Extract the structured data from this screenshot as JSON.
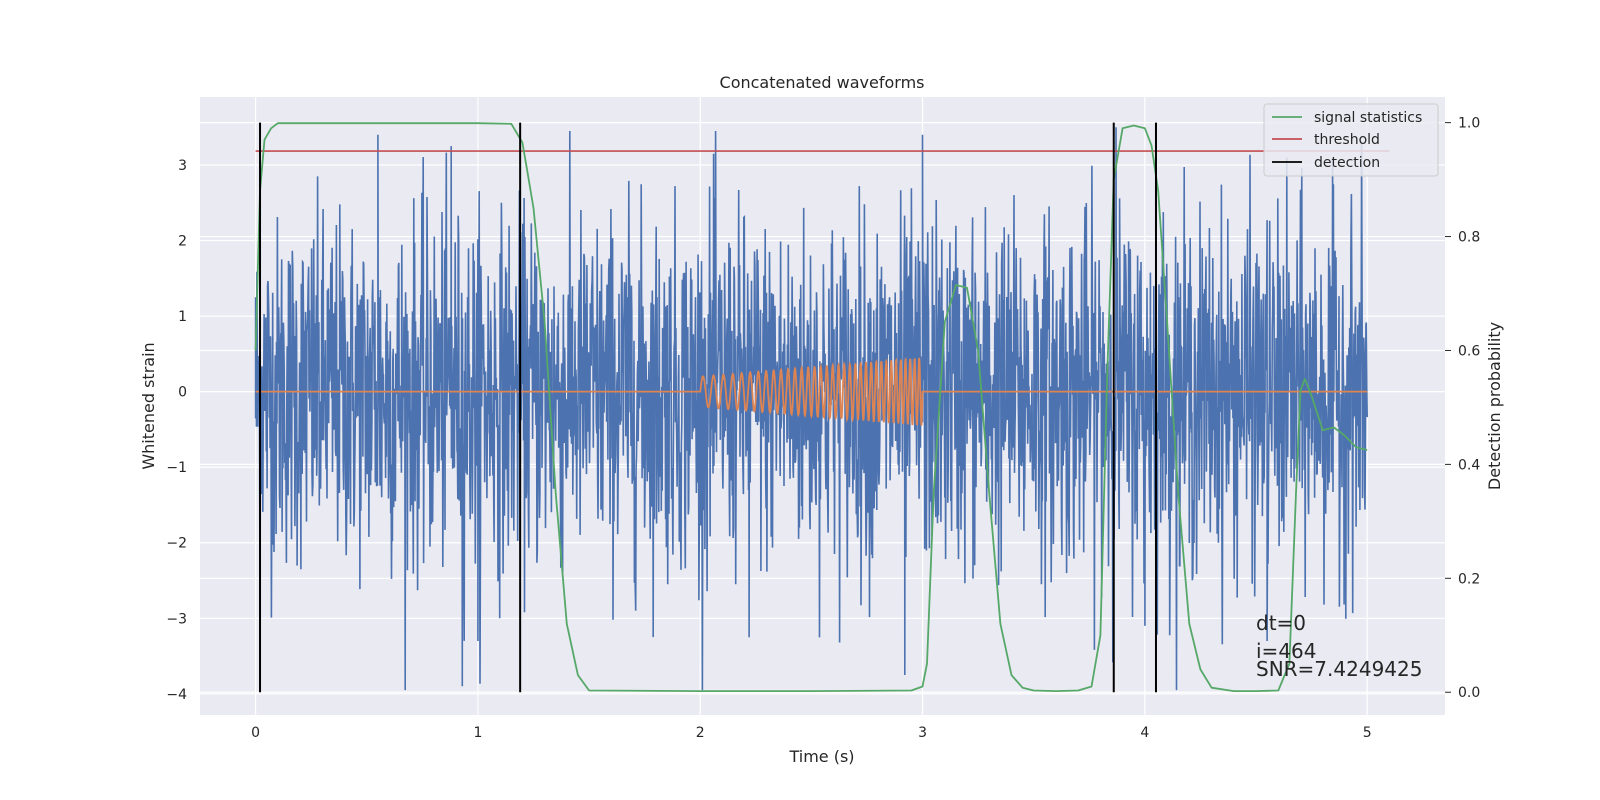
{
  "chart_data": {
    "type": "line",
    "title": "Concatenated waveforms",
    "xlabel": "Time (s)",
    "ylabel_left": "Whitened strain",
    "ylabel_right": "Detection probability",
    "xlim": [
      -0.25,
      5.35
    ],
    "ylim_left": [
      -4.28,
      3.9
    ],
    "ylim_right": [
      -0.04,
      1.045
    ],
    "x_ticks": [
      0,
      1,
      2,
      3,
      4,
      5
    ],
    "x_tick_labels": [
      "0",
      "1",
      "2",
      "3",
      "4",
      "5"
    ],
    "y_left_ticks": [
      -4,
      -3,
      -2,
      -1,
      0,
      1,
      2,
      3
    ],
    "y_left_tick_labels": [
      "−4",
      "−3",
      "−2",
      "−1",
      "0",
      "1",
      "2",
      "3"
    ],
    "y_right_ticks": [
      0.0,
      0.2,
      0.4,
      0.6,
      0.8,
      1.0
    ],
    "y_right_tick_labels": [
      "0.0",
      "0.2",
      "0.4",
      "0.6",
      "0.8",
      "1.0"
    ],
    "grid": true,
    "legend_position": "top-right",
    "legend": [
      {
        "label": "signal statistics",
        "color": "#55a868"
      },
      {
        "label": "threshold",
        "color": "#c44e52"
      },
      {
        "label": "detection",
        "color": "#000000"
      }
    ],
    "series": [
      {
        "kind": "noise_strain",
        "axis": "left",
        "color": "#4c72b0",
        "x_range": [
          0,
          5
        ],
        "amplitude_envelope": 1.2,
        "noted_peaks": [
          [
            0.0,
            1.25
          ],
          [
            0.55,
            3.4
          ],
          [
            0.88,
            3.25
          ],
          [
            0.93,
            -3.9
          ],
          [
            1.0,
            -3.3
          ],
          [
            2.06,
            3.15
          ],
          [
            2.22,
            -3.25
          ],
          [
            2.92,
            -3.75
          ],
          [
            3.0,
            3.4
          ],
          [
            3.87,
            3.5
          ],
          [
            4.0,
            -3.1
          ],
          [
            4.55,
            -3.3
          ]
        ]
      },
      {
        "name": "signal statistics",
        "axis": "right",
        "color": "#55a868",
        "x": [
          0.0,
          0.02,
          0.04,
          0.07,
          0.1,
          0.2,
          0.5,
          1.0,
          1.15,
          1.2,
          1.22,
          1.25,
          1.3,
          1.35,
          1.4,
          1.45,
          1.5,
          2.0,
          2.5,
          2.95,
          3.0,
          3.02,
          3.05,
          3.1,
          3.15,
          3.2,
          3.25,
          3.3,
          3.35,
          3.4,
          3.45,
          3.5,
          3.6,
          3.7,
          3.76,
          3.8,
          3.83,
          3.86,
          3.9,
          3.95,
          4.0,
          4.03,
          4.06,
          4.1,
          4.15,
          4.2,
          4.25,
          4.3,
          4.4,
          4.5,
          4.6,
          4.65,
          4.68,
          4.7,
          4.72,
          4.75,
          4.8,
          4.85,
          4.9,
          4.95,
          5.0
        ],
        "values": [
          0.6,
          0.88,
          0.97,
          0.99,
          0.999,
          0.999,
          0.999,
          0.999,
          0.998,
          0.965,
          0.92,
          0.85,
          0.65,
          0.35,
          0.12,
          0.03,
          0.003,
          0.002,
          0.002,
          0.003,
          0.01,
          0.05,
          0.35,
          0.65,
          0.715,
          0.71,
          0.6,
          0.35,
          0.12,
          0.03,
          0.008,
          0.003,
          0.002,
          0.003,
          0.01,
          0.1,
          0.55,
          0.9,
          0.99,
          0.995,
          0.99,
          0.96,
          0.88,
          0.65,
          0.35,
          0.12,
          0.04,
          0.008,
          0.002,
          0.002,
          0.003,
          0.05,
          0.35,
          0.53,
          0.55,
          0.52,
          0.46,
          0.465,
          0.45,
          0.43,
          0.425
        ]
      },
      {
        "name": "threshold",
        "axis": "right",
        "color": "#c44e52",
        "x": [
          0.0,
          5.1
        ],
        "values": [
          0.95,
          0.95
        ]
      },
      {
        "name": "detection",
        "axis": "right",
        "color": "#000000",
        "vertical_lines_x": [
          0.02,
          1.19,
          3.86,
          4.05
        ],
        "span": [
          0.0,
          1.0
        ]
      },
      {
        "kind": "injected_waveform",
        "axis": "left",
        "color": "#dd8452",
        "x_range": [
          0,
          5
        ],
        "chirp_window": [
          2.0,
          3.0
        ],
        "chirp_amplitude": [
          0.2,
          0.45
        ],
        "chirp_frequency_hz": [
          20,
          50
        ]
      }
    ],
    "annotations": [
      "dt=0",
      "i=464",
      "SNR=7.4249425"
    ]
  }
}
